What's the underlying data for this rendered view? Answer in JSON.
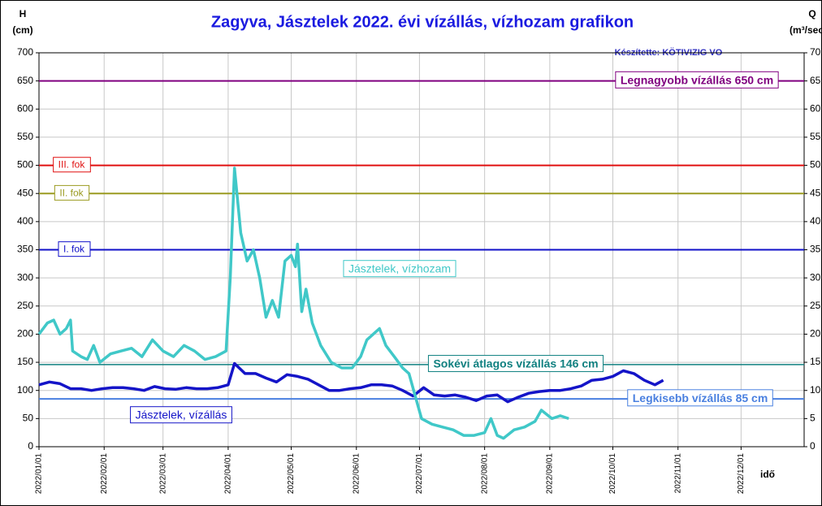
{
  "chart_data": {
    "type": "line",
    "title": "Zagyva, Jásztelek 2022. évi vízállás, vízhozam grafikon",
    "y_label": [
      "H",
      "(cm)"
    ],
    "y2_label": [
      "Q",
      "(m³/sec)"
    ],
    "x_label": "idő",
    "credit": "Készítette: KÖTIVIZIG VO",
    "xlim": [
      "2022/01/01",
      "2022/12/31"
    ],
    "xticks": [
      "2022/01/01",
      "2022/02/01",
      "2022/03/01",
      "2022/04/01",
      "2022/05/01",
      "2022/06/01",
      "2022/07/01",
      "2022/08/01",
      "2022/09/01",
      "2022/10/01",
      "2022/11/01",
      "2022/12/01"
    ],
    "ylim": [
      0,
      700
    ],
    "yticks": [
      0,
      50,
      100,
      150,
      200,
      250,
      300,
      350,
      400,
      450,
      500,
      550,
      600,
      650,
      700
    ],
    "y2lim": [
      0,
      70
    ],
    "y2ticks": [
      0,
      5,
      10,
      15,
      20,
      25,
      30,
      35,
      40,
      45,
      50,
      55,
      60,
      65,
      70
    ],
    "grid": true,
    "reference_lines": [
      {
        "value": 650,
        "label": "Legnagyobb vízállás 650 cm",
        "color": "#800080"
      },
      {
        "value": 500,
        "label": "III. fok",
        "color": "#e01010"
      },
      {
        "value": 450,
        "label": "II. fok",
        "color": "#9a9a20"
      },
      {
        "value": 350,
        "label": "I. fok",
        "color": "#1010c8"
      },
      {
        "value": 146,
        "label": "Sokévi átlagos vízállás 146 cm",
        "color": "#108080"
      },
      {
        "value": 85,
        "label": "Legkisebb vízállás 85 cm",
        "color": "#4a80e0"
      }
    ],
    "series": [
      {
        "name": "Jásztelek, vízállás",
        "color": "#1414c8",
        "axis": "y",
        "x": [
          "2022/01/01",
          "2022/01/06",
          "2022/01/11",
          "2022/01/16",
          "2022/01/21",
          "2022/01/26",
          "2022/01/31",
          "2022/02/05",
          "2022/02/10",
          "2022/02/15",
          "2022/02/20",
          "2022/02/25",
          "2022/03/02",
          "2022/03/07",
          "2022/03/12",
          "2022/03/17",
          "2022/03/22",
          "2022/03/27",
          "2022/04/01",
          "2022/04/04",
          "2022/04/09",
          "2022/04/14",
          "2022/04/19",
          "2022/04/24",
          "2022/04/29",
          "2022/05/04",
          "2022/05/09",
          "2022/05/14",
          "2022/05/19",
          "2022/05/24",
          "2022/05/29",
          "2022/06/03",
          "2022/06/08",
          "2022/06/13",
          "2022/06/18",
          "2022/06/23",
          "2022/06/28",
          "2022/07/03",
          "2022/07/08",
          "2022/07/13",
          "2022/07/18",
          "2022/07/23",
          "2022/07/28",
          "2022/08/02",
          "2022/08/07",
          "2022/08/12",
          "2022/08/17",
          "2022/08/22",
          "2022/08/27",
          "2022/09/01",
          "2022/09/06",
          "2022/09/11",
          "2022/09/16",
          "2022/09/21",
          "2022/09/26",
          "2022/10/01",
          "2022/10/06",
          "2022/10/11",
          "2022/10/16",
          "2022/10/21",
          "2022/10/25"
        ],
        "values": [
          110,
          115,
          112,
          103,
          103,
          100,
          103,
          105,
          105,
          103,
          100,
          107,
          103,
          102,
          105,
          103,
          103,
          105,
          110,
          148,
          130,
          130,
          122,
          115,
          128,
          125,
          120,
          110,
          100,
          100,
          103,
          105,
          110,
          110,
          108,
          100,
          90,
          105,
          92,
          90,
          92,
          88,
          82,
          90,
          92,
          80,
          88,
          95,
          98,
          100,
          100,
          103,
          108,
          118,
          120,
          125,
          135,
          130,
          118,
          110,
          118
        ]
      },
      {
        "name": "Jásztelek, vízhozam",
        "color": "#40c8c8",
        "axis": "y2",
        "x": [
          "2022/01/01",
          "2022/01/05",
          "2022/01/08",
          "2022/01/11",
          "2022/01/14",
          "2022/01/16",
          "2022/01/17",
          "2022/01/21",
          "2022/01/24",
          "2022/01/27",
          "2022/01/30",
          "2022/02/04",
          "2022/02/09",
          "2022/02/14",
          "2022/02/19",
          "2022/02/24",
          "2022/03/01",
          "2022/03/06",
          "2022/03/11",
          "2022/03/16",
          "2022/03/21",
          "2022/03/26",
          "2022/03/31",
          "2022/04/02",
          "2022/04/04",
          "2022/04/07",
          "2022/04/10",
          "2022/04/13",
          "2022/04/16",
          "2022/04/19",
          "2022/04/22",
          "2022/04/25",
          "2022/04/28",
          "2022/05/01",
          "2022/05/03",
          "2022/05/04",
          "2022/05/06",
          "2022/05/08",
          "2022/05/11",
          "2022/05/15",
          "2022/05/20",
          "2022/05/25",
          "2022/05/30",
          "2022/06/03",
          "2022/06/06",
          "2022/06/09",
          "2022/06/12",
          "2022/06/15",
          "2022/06/19",
          "2022/06/23",
          "2022/06/26",
          "2022/06/29",
          "2022/07/02",
          "2022/07/07",
          "2022/07/12",
          "2022/07/17",
          "2022/07/22",
          "2022/07/27",
          "2022/08/01",
          "2022/08/04",
          "2022/08/07",
          "2022/08/10",
          "2022/08/15",
          "2022/08/20",
          "2022/08/25",
          "2022/08/28",
          "2022/09/02",
          "2022/09/06",
          "2022/09/10"
        ],
        "values": [
          20,
          22,
          22.5,
          20,
          21,
          22.5,
          17,
          16,
          15.5,
          18,
          15,
          16.5,
          17,
          17.5,
          16,
          19,
          17,
          16,
          18,
          17,
          15.5,
          16,
          17,
          30,
          49.5,
          38,
          33,
          35,
          30,
          23,
          26,
          23,
          33,
          34,
          32,
          36,
          24,
          28,
          22,
          18,
          15,
          14,
          14,
          16,
          19,
          20,
          21,
          18,
          16,
          14,
          13,
          9,
          5,
          4,
          3.5,
          3,
          2,
          2,
          2.5,
          5,
          2,
          1.5,
          3,
          3.5,
          4.5,
          6.5,
          5,
          5.5,
          5
        ]
      }
    ]
  }
}
